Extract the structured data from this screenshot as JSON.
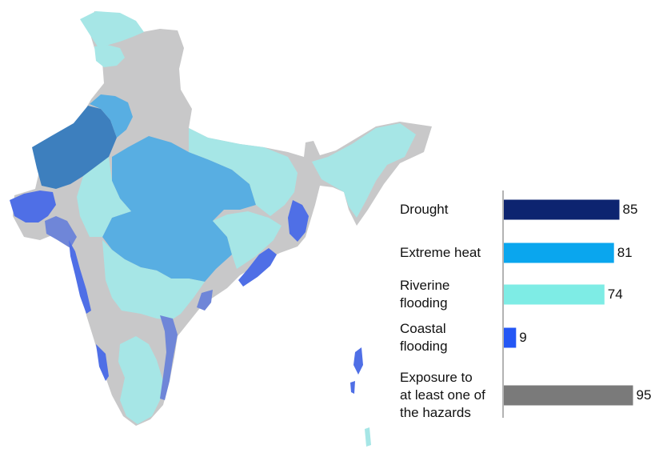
{
  "chart_data": {
    "type": "bar",
    "orientation": "horizontal",
    "categories": [
      "Drought",
      "Extreme heat",
      "Riverine\nflooding",
      "Coastal\nflooding",
      "Exposure to\nat least one of\nthe hazards"
    ],
    "values": [
      85,
      81,
      74,
      9,
      95
    ],
    "value_labels": [
      "85",
      "81",
      "74",
      "9",
      "95"
    ],
    "colors": [
      "#0d2470",
      "#0aa6ee",
      "#7eece5",
      "#2457f5",
      "#7a7a7a"
    ],
    "xlim": [
      0,
      100
    ]
  },
  "map": {
    "colors": {
      "base": "#c8c8c9",
      "drought_heat": "#3d7fbe",
      "heat": "#58aee2",
      "riverine": "#a6e6e6",
      "coastal": "#4f6fe6",
      "coastal_mix": "#6f86d8"
    }
  }
}
